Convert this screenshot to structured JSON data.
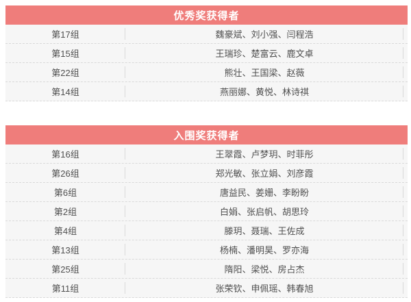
{
  "colors": {
    "header_background": "#ef7d7b",
    "header_text": "#ffffff",
    "row_background": "#f6f6f6",
    "row_text": "#4f4f4f",
    "divider": "#d9d9d9"
  },
  "tables": [
    {
      "title": "优秀奖获得者",
      "rows": [
        {
          "group": "第17组",
          "members": "魏豪斌、刘小强、闫程浩"
        },
        {
          "group": "第15组",
          "members": "王瑞珍、楚富云、鹿文卓"
        },
        {
          "group": "第22组",
          "members": "熊壮、王国梁、赵薇"
        },
        {
          "group": "第14组",
          "members": "燕丽娜、黄悦、林诗祺"
        }
      ]
    },
    {
      "title": "入围奖获得者",
      "rows": [
        {
          "group": "第16组",
          "members": "王翠霞、卢梦玥、时菲彤"
        },
        {
          "group": "第26组",
          "members": "郑光敏、张立娟、刘彦霞"
        },
        {
          "group": "第6组",
          "members": "唐益民、姜姗、李盼盼"
        },
        {
          "group": "第2组",
          "members": "白娟、张启帆、胡思玲"
        },
        {
          "group": "第4组",
          "members": "滕玥、聂瑞、王佐成"
        },
        {
          "group": "第13组",
          "members": "杨楠、潘明昊、罗亦海"
        },
        {
          "group": "第25组",
          "members": "隋阳、梁悦、房占杰"
        },
        {
          "group": "第11组",
          "members": "张荣钦、申佩瑶、韩春旭"
        }
      ]
    }
  ]
}
